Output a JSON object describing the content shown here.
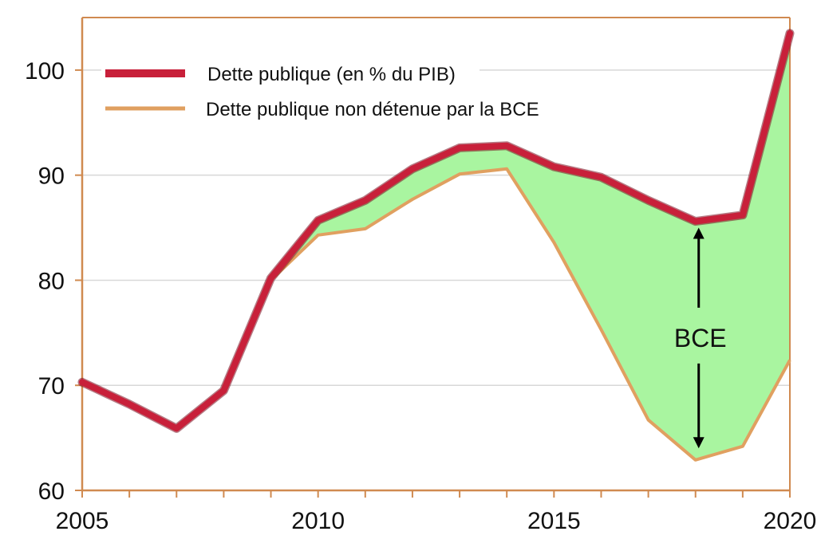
{
  "chart_data": {
    "type": "line",
    "title": "",
    "xlabel": "",
    "ylabel": "",
    "xlim": [
      2005,
      2020
    ],
    "ylim": [
      60,
      105
    ],
    "x_ticks": [
      "2005",
      "2010",
      "2015",
      "2020"
    ],
    "y_ticks": [
      "60",
      "70",
      "80",
      "90",
      "100"
    ],
    "grid": "horizontal",
    "legend_position": "top-left",
    "x": [
      2005,
      2006,
      2007,
      2008,
      2009,
      2010,
      2011,
      2012,
      2013,
      2014,
      2015,
      2016,
      2017,
      2018,
      2019,
      2020
    ],
    "series": [
      {
        "name": "Dette publique (en % du PIB)",
        "color": "#c8203a",
        "values": [
          70.3,
          68.2,
          65.9,
          69.5,
          80.2,
          85.7,
          87.6,
          90.6,
          92.6,
          92.8,
          90.8,
          89.8,
          87.6,
          85.6,
          86.2,
          103.5
        ]
      },
      {
        "name": "Dette publique non détenue par la BCE",
        "color": "#e0a060",
        "values": [
          null,
          null,
          null,
          null,
          80.0,
          84.3,
          84.9,
          87.7,
          90.1,
          90.6,
          83.6,
          75.3,
          66.7,
          62.9,
          64.2,
          72.4
        ]
      }
    ],
    "shaded_area": {
      "between": "series",
      "from_x": 2009,
      "color": "#a9f5a0"
    },
    "annotation": {
      "text": "BCE",
      "x": 2018,
      "y_top": 85.0,
      "y_bottom": 64.0
    }
  }
}
